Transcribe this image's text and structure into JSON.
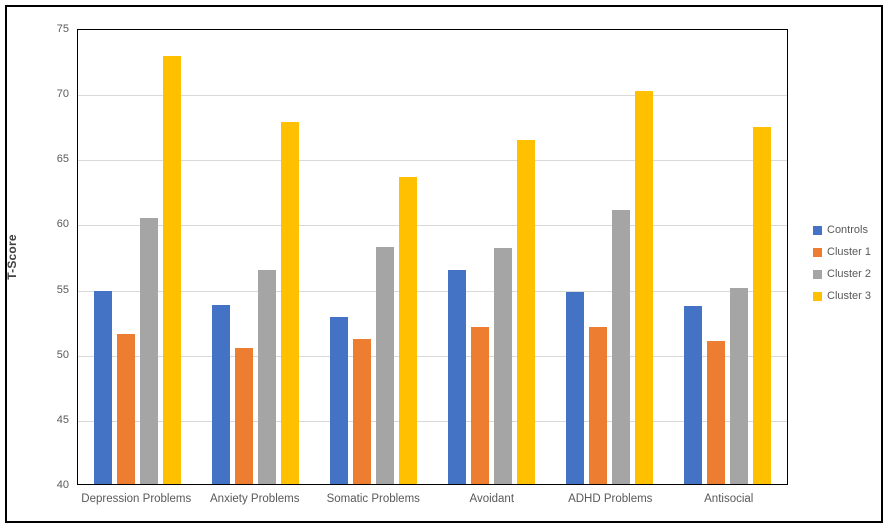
{
  "chart_data": {
    "type": "bar",
    "title": "",
    "xlabel": "",
    "ylabel": "T-Score",
    "ylim": [
      40,
      75
    ],
    "yticks": [
      40,
      45,
      50,
      55,
      60,
      65,
      70,
      75
    ],
    "grid": true,
    "legend_position": "right",
    "categories": [
      "Depression Problems",
      "Anxiety Problems",
      "Somatic Problems",
      "Avoidant",
      "ADHD Problems",
      "Antisocial"
    ],
    "series": [
      {
        "name": "Controls",
        "color": "#4472C4",
        "values": [
          54.9,
          53.8,
          52.9,
          56.5,
          54.8,
          53.7
        ]
      },
      {
        "name": "Cluster 1",
        "color": "#ED7D31",
        "values": [
          51.6,
          50.5,
          51.2,
          52.1,
          52.1,
          51.0
        ]
      },
      {
        "name": "Cluster 2",
        "color": "#A5A5A5",
        "values": [
          60.5,
          56.5,
          58.3,
          58.2,
          61.1,
          55.1
        ]
      },
      {
        "name": "Cluster 3",
        "color": "#FFC000",
        "values": [
          73.0,
          67.9,
          63.7,
          66.5,
          70.3,
          67.5
        ]
      }
    ]
  },
  "colors": {
    "gridline": "#d9d9d9",
    "plot_border": "#000000",
    "axis_text": "#595959",
    "axis_title": "#404040",
    "background": "#ffffff"
  }
}
